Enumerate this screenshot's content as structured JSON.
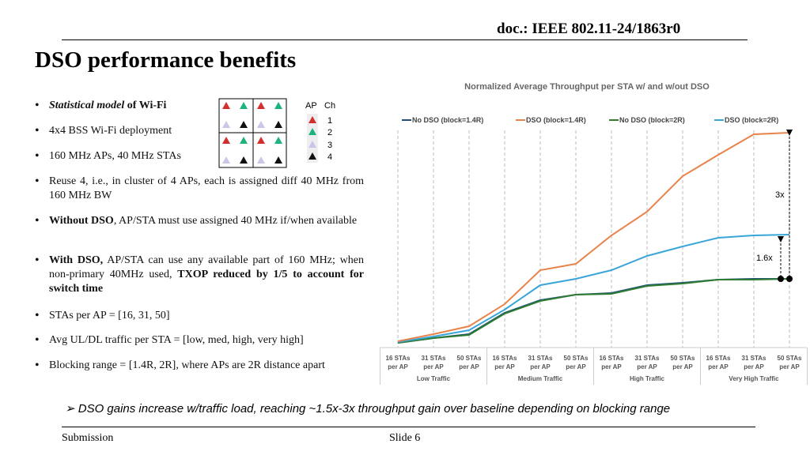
{
  "header": {
    "doc": "doc.: IEEE 802.11-24/1863r0",
    "title": "DSO performance benefits"
  },
  "bullets": [
    [
      "Statistical model",
      " of Wi-Fi"
    ],
    [
      "4x4 BSS Wi-Fi deployment"
    ],
    [
      "160 MHz APs, 40 MHz STAs"
    ],
    [
      "Reuse 4, i.e., in cluster of 4 APs, each is assigned diff 40 MHz from 160 MHz BW"
    ],
    [
      "Without DSO",
      ", AP/STA must use assigned 40 MHz if/when available"
    ],
    [
      "With DSO,",
      " AP/STA can use any available part of 160 MHz; when non-primary 40MHz used, ",
      "TXOP reduced by 1/5 to account for switch time"
    ],
    [
      "STAs per AP  = [16, 31, 50]"
    ],
    [
      "Avg UL/DL traffic per STA = [low, med, high, very high]"
    ],
    [
      "Blocking range = [1.4R, 2R], where APs are 2R distance apart"
    ]
  ],
  "channel_legend": {
    "headers": [
      "AP",
      "Ch"
    ],
    "channels": [
      "1",
      "2",
      "3",
      "4"
    ]
  },
  "chart_data": {
    "type": "line",
    "title": "Normalized Average Throughput per STA w/ and w/out DSO",
    "categories": [
      [
        "16 STAs",
        "per AP"
      ],
      [
        "31 STAs",
        "per AP"
      ],
      [
        "50 STAs",
        "per AP"
      ],
      [
        "16 STAs",
        "per AP"
      ],
      [
        "31 STAs",
        "per AP"
      ],
      [
        "50 STAs",
        "per AP"
      ],
      [
        "16 STAs",
        "per AP"
      ],
      [
        "31 STAs",
        "per AP"
      ],
      [
        "50 STAs",
        "per AP"
      ],
      [
        "16 STAs",
        "per AP"
      ],
      [
        "31 STAs",
        "per AP"
      ],
      [
        "50 STAs",
        "per AP"
      ]
    ],
    "groups": [
      "Low Traffic",
      "Medium Traffic",
      "High Traffic",
      "Very High Traffic"
    ],
    "series": [
      {
        "name": "No DSO (block=1.4R)",
        "color": "#1f4e79",
        "values": [
          0.06,
          0.12,
          0.17,
          0.44,
          0.6,
          0.67,
          0.69,
          0.79,
          0.82,
          0.86,
          0.87,
          0.87
        ]
      },
      {
        "name": "DSO (block=1.4R)",
        "color": "#e8834a",
        "values": [
          0.08,
          0.17,
          0.27,
          0.55,
          0.98,
          1.06,
          1.42,
          1.72,
          2.17,
          2.44,
          2.7,
          2.72
        ]
      },
      {
        "name": "No DSO (block=2R)",
        "color": "#2e7d32",
        "values": [
          0.06,
          0.12,
          0.16,
          0.43,
          0.59,
          0.67,
          0.68,
          0.78,
          0.81,
          0.86,
          0.86,
          0.87
        ]
      },
      {
        "name": "DSO (block=2R)",
        "color": "#3aa5d8",
        "values": [
          0.07,
          0.14,
          0.22,
          0.48,
          0.79,
          0.87,
          0.98,
          1.16,
          1.28,
          1.39,
          1.42,
          1.43
        ]
      }
    ],
    "ylim": [
      0,
      2.8
    ],
    "annotations": [
      "3x",
      "1.6x"
    ]
  },
  "conclusion": "➢ DSO gains increase w/traffic load, reaching ~1.5x-3x throughput gain over baseline depending on blocking range",
  "footer": {
    "left": "Submission",
    "center": "Slide 6"
  }
}
